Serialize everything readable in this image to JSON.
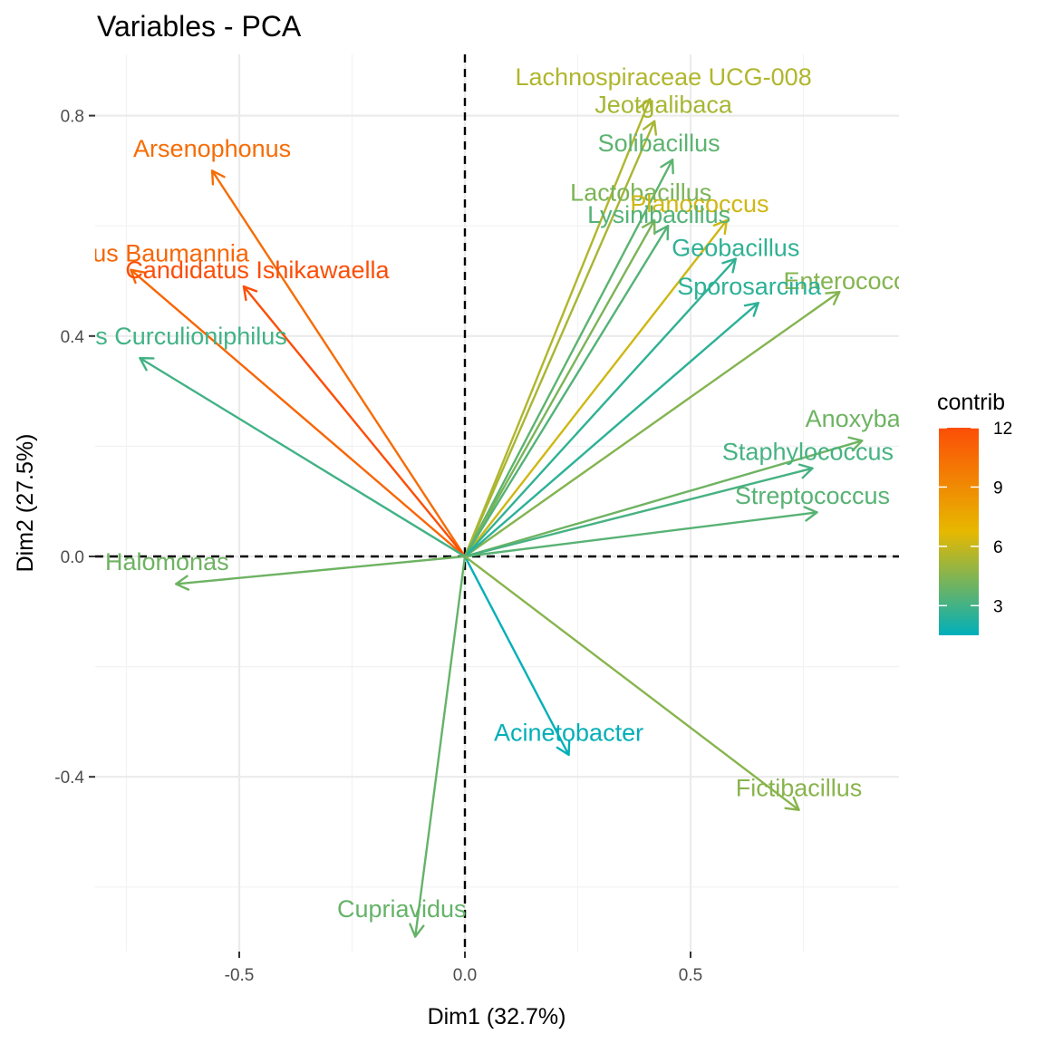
{
  "chart_data": {
    "type": "pca-variables",
    "title": "Variables - PCA",
    "xlabel": "Dim1 (32.7%)",
    "ylabel": "Dim2 (27.5%)",
    "xlim": [
      -0.8,
      0.96
    ],
    "ylim": [
      -0.72,
      0.91
    ],
    "x_ticks": [
      -0.5,
      0.0,
      0.5
    ],
    "x_tick_labels": [
      "-0.5",
      "0.0",
      "0.5"
    ],
    "y_ticks": [
      -0.4,
      0.0,
      0.4,
      0.8
    ],
    "y_tick_labels": [
      "-0.4",
      "0.0",
      "0.4",
      "0.8"
    ],
    "grid": true,
    "legend": {
      "title": "contrib",
      "position": "right",
      "range": [
        1.5,
        12
      ],
      "ticks": [
        3,
        6,
        9,
        12
      ],
      "tick_labels": [
        "3",
        "6",
        "9",
        "12"
      ],
      "gradient": [
        "#00AFBB",
        "#E7B800",
        "#FC4E07"
      ]
    },
    "variables": [
      {
        "name": "Lachnospiraceae UCG-008",
        "x": 0.41,
        "y": 0.83,
        "contrib": 5.5
      },
      {
        "name": "Jeotgalibaca",
        "x": 0.42,
        "y": 0.79,
        "contrib": 5.3
      },
      {
        "name": "Solibacillus",
        "x": 0.46,
        "y": 0.72,
        "contrib": 3.6
      },
      {
        "name": "Lactobacillus",
        "x": 0.42,
        "y": 0.61,
        "contrib": 4.3
      },
      {
        "name": "Planococcus",
        "x": 0.58,
        "y": 0.61,
        "contrib": 6.2
      },
      {
        "name": "Lysinibacillus",
        "x": 0.45,
        "y": 0.6,
        "contrib": 3.4
      },
      {
        "name": "Geobacillus",
        "x": 0.6,
        "y": 0.54,
        "contrib": 2.6
      },
      {
        "name": "Enterococcus",
        "x": 0.83,
        "y": 0.48,
        "contrib": 4.5
      },
      {
        "name": "Sporosarcina",
        "x": 0.65,
        "y": 0.46,
        "contrib": 2.5
      },
      {
        "name": "Arsenophonus",
        "x": -0.56,
        "y": 0.7,
        "contrib": 10.5
      },
      {
        "name": "Candidatus Baumannia",
        "x": -0.74,
        "y": 0.52,
        "contrib": 10.8
      },
      {
        "name": "Candidatus Ishikawaella",
        "x": -0.49,
        "y": 0.49,
        "contrib": 12.0
      },
      {
        "name": "Candidatus Curculioniphilus",
        "x": -0.72,
        "y": 0.36,
        "contrib": 3.0
      },
      {
        "name": "Anoxybacillus",
        "x": 0.88,
        "y": 0.21,
        "contrib": 4.0
      },
      {
        "name": "Staphylococcus",
        "x": 0.77,
        "y": 0.16,
        "contrib": 3.1
      },
      {
        "name": "Streptococcus",
        "x": 0.78,
        "y": 0.08,
        "contrib": 3.5
      },
      {
        "name": "Halomonas",
        "x": -0.64,
        "y": -0.05,
        "contrib": 4.0
      },
      {
        "name": "Acinetobacter",
        "x": 0.23,
        "y": -0.36,
        "contrib": 1.6
      },
      {
        "name": "Fictibacillus",
        "x": 0.74,
        "y": -0.46,
        "contrib": 4.6
      },
      {
        "name": "Cupriavidus",
        "x": -0.11,
        "y": -0.69,
        "contrib": 3.8
      }
    ],
    "label_text": [
      {
        "text": "Lachnospiraceae UCG-008",
        "x": 0.44,
        "y": 0.87,
        "contrib": 5.5
      },
      {
        "text": "Jeotgalibaca",
        "x": 0.44,
        "y": 0.82,
        "contrib": 5.3
      },
      {
        "text": "Solibacillus",
        "x": 0.43,
        "y": 0.75,
        "contrib": 3.6
      },
      {
        "text": "Lactobacillus",
        "x": 0.39,
        "y": 0.66,
        "contrib": 4.3
      },
      {
        "text": "Planococcus",
        "x": 0.52,
        "y": 0.64,
        "contrib": 6.2
      },
      {
        "text": "Lysinibacillus",
        "x": 0.43,
        "y": 0.62,
        "contrib": 3.4
      },
      {
        "text": "Geobacillus",
        "x": 0.6,
        "y": 0.56,
        "contrib": 2.6
      },
      {
        "text": "Enterococcus",
        "x": 0.87,
        "y": 0.5,
        "contrib": 4.5
      },
      {
        "text": "Sporosarcina",
        "x": 0.63,
        "y": 0.49,
        "contrib": 2.5
      },
      {
        "text": "Arsenophonus",
        "x": -0.56,
        "y": 0.74,
        "contrib": 10.5
      },
      {
        "text": "Candidatus Baumannia",
        "x": -0.76,
        "y": 0.55,
        "contrib": 10.8
      },
      {
        "text": "Candidatus Ishikawaella",
        "x": -0.46,
        "y": 0.52,
        "contrib": 12.0
      },
      {
        "text": "Candidatus Curculioniphilus",
        "x": -0.73,
        "y": 0.4,
        "contrib": 3.0
      },
      {
        "text": "Anoxybacillus",
        "x": 0.92,
        "y": 0.25,
        "contrib": 4.0
      },
      {
        "text": "Staphylococcus",
        "x": 0.76,
        "y": 0.19,
        "contrib": 3.1
      },
      {
        "text": "Streptococcus",
        "x": 0.77,
        "y": 0.11,
        "contrib": 3.5
      },
      {
        "text": "Halomonas",
        "x": -0.66,
        "y": -0.01,
        "contrib": 4.0
      },
      {
        "text": "Acinetobacter",
        "x": 0.23,
        "y": -0.32,
        "contrib": 1.6
      },
      {
        "text": "Fictibacillus",
        "x": 0.74,
        "y": -0.42,
        "contrib": 4.6
      },
      {
        "text": "Cupriavidus",
        "x": -0.14,
        "y": -0.64,
        "contrib": 3.8
      }
    ]
  }
}
